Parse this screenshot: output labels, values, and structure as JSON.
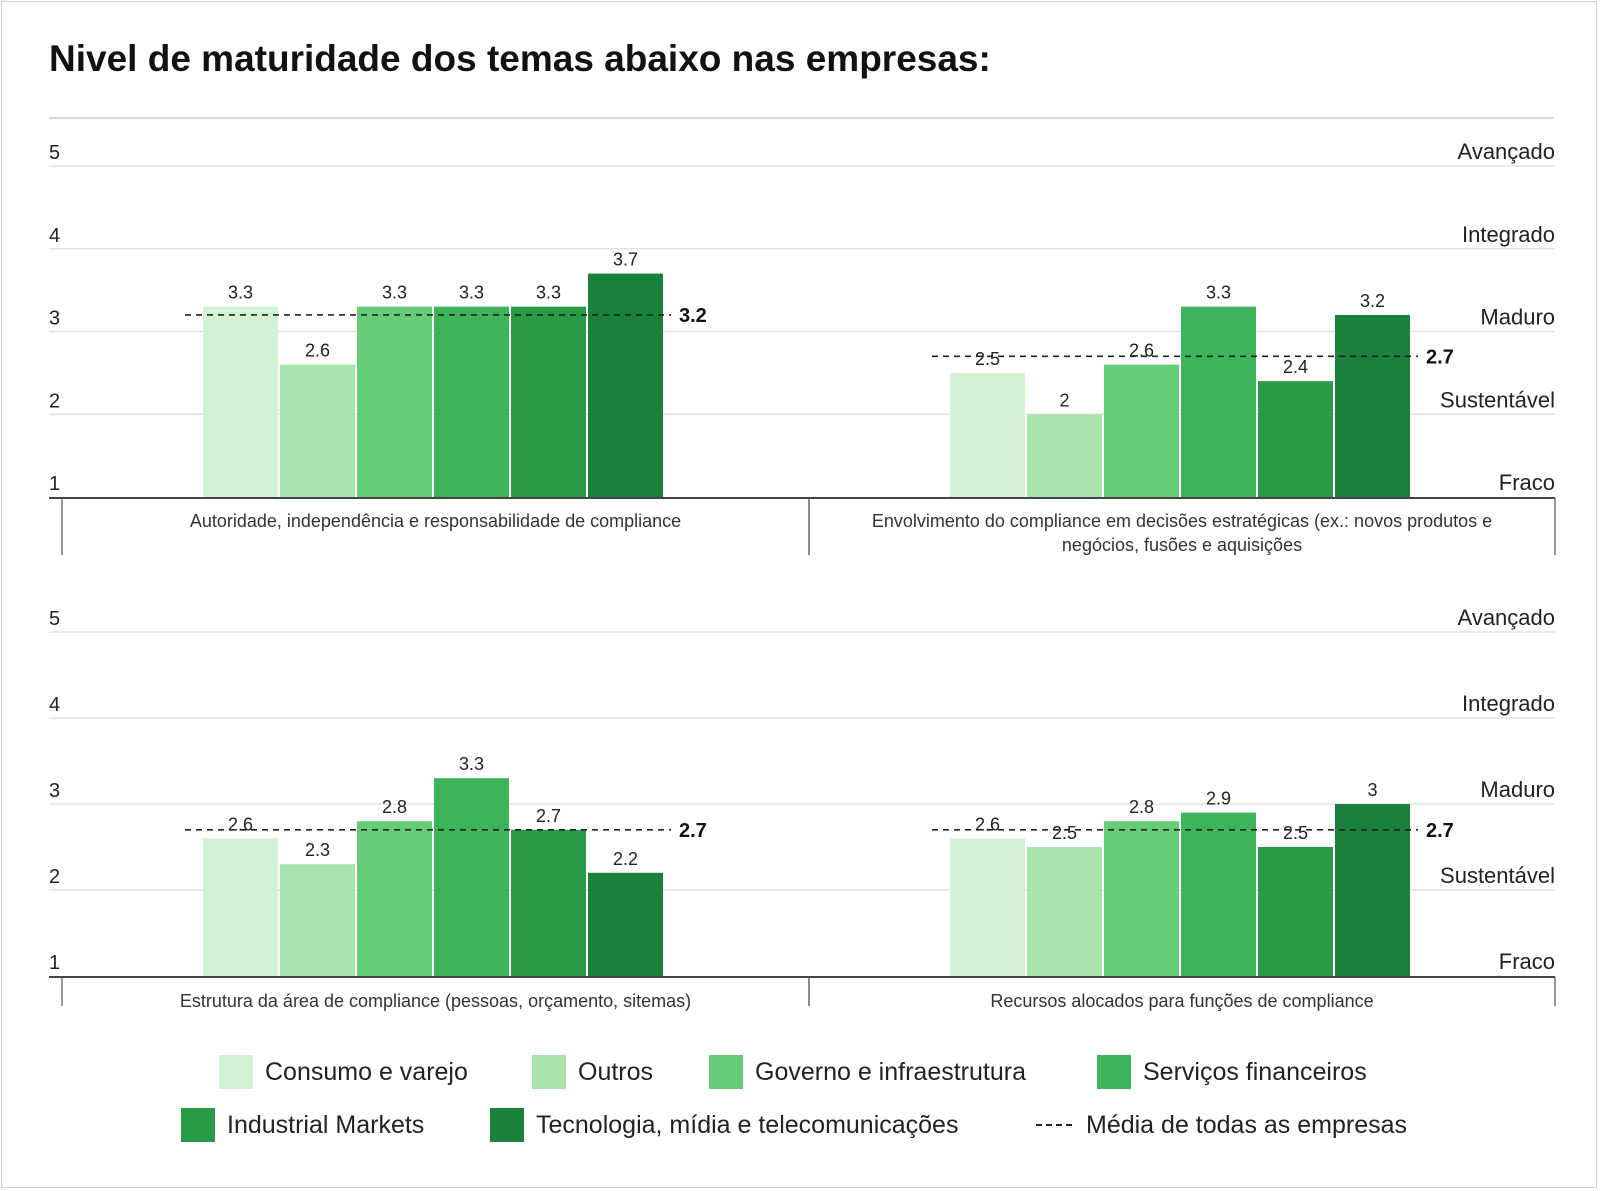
{
  "title": "Nivel de maturidade dos temas abaixo nas empresas:",
  "colors": {
    "series": [
      "#d2f2d3",
      "#a9e5aa",
      "#66cc77",
      "#3db35a",
      "#289a48",
      "#1a803c"
    ],
    "average_line": "#222222",
    "grid": "#dddddd",
    "axis": "#444444"
  },
  "chart_data": [
    {
      "type": "bar",
      "title": "",
      "xlabel": "Autoridade, independência e responsabilidade de compliance",
      "ylim": [
        1,
        5
      ],
      "yticks": [
        "1",
        "2",
        "3",
        "4",
        "5"
      ],
      "level_labels": [
        "Fraco",
        "Sustentável",
        "Maduro",
        "Integrado",
        "Avançado"
      ],
      "series": [
        {
          "name": "Consumo e varejo",
          "value": 3.3,
          "label": "3.3"
        },
        {
          "name": "Outros",
          "value": 2.6,
          "label": "2.6"
        },
        {
          "name": "Governo e infraestrutura",
          "value": 3.3,
          "label": "3.3"
        },
        {
          "name": "Serviços financeiros",
          "value": 3.3,
          "label": "3.3"
        },
        {
          "name": "Industrial Markets",
          "value": 3.3,
          "label": "3.3"
        },
        {
          "name": "Tecnologia, mídia e telecomunicações",
          "value": 3.7,
          "label": "3.7"
        }
      ],
      "average": {
        "value": 3.2,
        "label": "3.2"
      }
    },
    {
      "type": "bar",
      "title": "",
      "xlabel": "Envolvimento do compliance em decisões estratégicas (ex.: novos produtos e negócios, fusões e aquisições",
      "ylim": [
        1,
        5
      ],
      "yticks": [
        "1",
        "2",
        "3",
        "4",
        "5"
      ],
      "level_labels": [
        "Fraco",
        "Sustentável",
        "Maduro",
        "Integrado",
        "Avançado"
      ],
      "series": [
        {
          "name": "Consumo e varejo",
          "value": 2.5,
          "label": "2.5"
        },
        {
          "name": "Outros",
          "value": 2.0,
          "label": "2"
        },
        {
          "name": "Governo e infraestrutura",
          "value": 2.6,
          "label": "2.6"
        },
        {
          "name": "Serviços financeiros",
          "value": 3.3,
          "label": "3.3"
        },
        {
          "name": "Industrial Markets",
          "value": 2.4,
          "label": "2.4"
        },
        {
          "name": "Tecnologia, mídia e telecomunicações",
          "value": 3.2,
          "label": "3.2"
        }
      ],
      "average": {
        "value": 2.7,
        "label": "2.7"
      }
    },
    {
      "type": "bar",
      "title": "",
      "xlabel": "Estrutura da área de compliance (pessoas, orçamento, sitemas)",
      "ylim": [
        1,
        5
      ],
      "yticks": [
        "1",
        "2",
        "3",
        "4",
        "5"
      ],
      "level_labels": [
        "Fraco",
        "Sustentável",
        "Maduro",
        "Integrado",
        "Avançado"
      ],
      "series": [
        {
          "name": "Consumo e varejo",
          "value": 2.6,
          "label": "2.6"
        },
        {
          "name": "Outros",
          "value": 2.3,
          "label": "2.3"
        },
        {
          "name": "Governo e infraestrutura",
          "value": 2.8,
          "label": "2.8"
        },
        {
          "name": "Serviços financeiros",
          "value": 3.3,
          "label": "3.3"
        },
        {
          "name": "Industrial Markets",
          "value": 2.7,
          "label": "2.7"
        },
        {
          "name": "Tecnologia, mídia e telecomunicações",
          "value": 2.2,
          "label": "2.2"
        }
      ],
      "average": {
        "value": 2.7,
        "label": "2.7"
      }
    },
    {
      "type": "bar",
      "title": "",
      "xlabel": "Recursos alocados para funções de compliance",
      "ylim": [
        1,
        5
      ],
      "yticks": [
        "1",
        "2",
        "3",
        "4",
        "5"
      ],
      "level_labels": [
        "Fraco",
        "Sustentável",
        "Maduro",
        "Integrado",
        "Avançado"
      ],
      "series": [
        {
          "name": "Consumo e varejo",
          "value": 2.6,
          "label": "2.6"
        },
        {
          "name": "Outros",
          "value": 2.5,
          "label": "2.5"
        },
        {
          "name": "Governo e infraestrutura",
          "value": 2.8,
          "label": "2.8"
        },
        {
          "name": "Serviços financeiros",
          "value": 2.9,
          "label": "2.9"
        },
        {
          "name": "Industrial Markets",
          "value": 2.5,
          "label": "2.5"
        },
        {
          "name": "Tecnologia, mídia e telecomunicações",
          "value": 3.0,
          "label": "3"
        }
      ],
      "average": {
        "value": 2.7,
        "label": "2.7"
      }
    }
  ],
  "legend": [
    {
      "label": "Consumo e varejo",
      "color": "#d2f2d3",
      "kind": "swatch"
    },
    {
      "label": "Outros",
      "color": "#a9e5aa",
      "kind": "swatch"
    },
    {
      "label": "Governo e infraestrutura",
      "color": "#66cc77",
      "kind": "swatch"
    },
    {
      "label": "Serviços financeiros",
      "color": "#3db35a",
      "kind": "swatch"
    },
    {
      "label": "Industrial Markets",
      "color": "#289a48",
      "kind": "swatch"
    },
    {
      "label": "Tecnologia, mídia e telecomunicações",
      "color": "#1a803c",
      "kind": "swatch"
    },
    {
      "label": "Média de todas as empresas",
      "color": "#222222",
      "kind": "dash"
    }
  ]
}
